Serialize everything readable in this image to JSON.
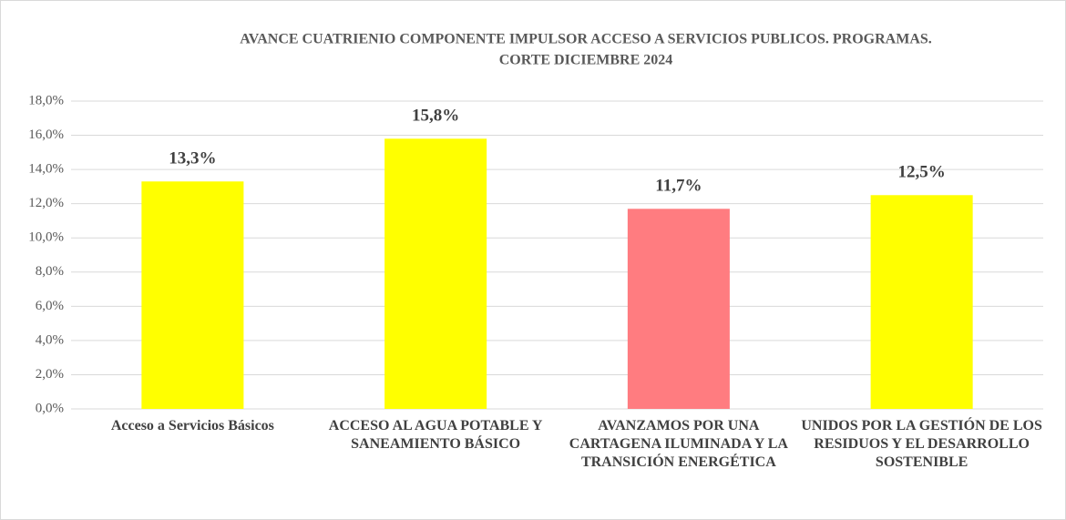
{
  "chart_data": {
    "type": "bar",
    "title": [
      "AVANCE  CUATRIENIO COMPONENTE IMPULSOR  ACCESO A SERVICIOS PUBLICOS. PROGRAMAS.",
      "CORTE DICIEMBRE 2024"
    ],
    "categories": [
      "Acceso a Servicios Básicos",
      "ACCESO AL AGUA POTABLE Y SANEAMIENTO BÁSICO",
      "AVANZAMOS POR UNA CARTAGENA ILUMINADA Y LA TRANSICIÓN ENERGÉTICA",
      "UNIDOS POR LA GESTIÓN DE LOS RESIDUOS Y EL DESARROLLO SOSTENIBLE"
    ],
    "values": [
      13.3,
      15.8,
      11.7,
      12.5
    ],
    "value_labels": [
      "13,3%",
      "15,8%",
      "11,7%",
      "12,5%"
    ],
    "colors": [
      "#ffff00",
      "#ffff00",
      "#ff7c80",
      "#ffff00"
    ],
    "ylim": [
      0,
      18
    ],
    "yticks": [
      {
        "value": 0,
        "label": "0,0%"
      },
      {
        "value": 2,
        "label": "2,0%"
      },
      {
        "value": 4,
        "label": "4,0%"
      },
      {
        "value": 6,
        "label": "6,0%"
      },
      {
        "value": 8,
        "label": "8,0%"
      },
      {
        "value": 10,
        "label": "10,0%"
      },
      {
        "value": 12,
        "label": "12,0%"
      },
      {
        "value": 14,
        "label": "14,0%"
      },
      {
        "value": 16,
        "label": "16,0%"
      },
      {
        "value": 18,
        "label": "18,0%"
      }
    ],
    "grid": true
  }
}
